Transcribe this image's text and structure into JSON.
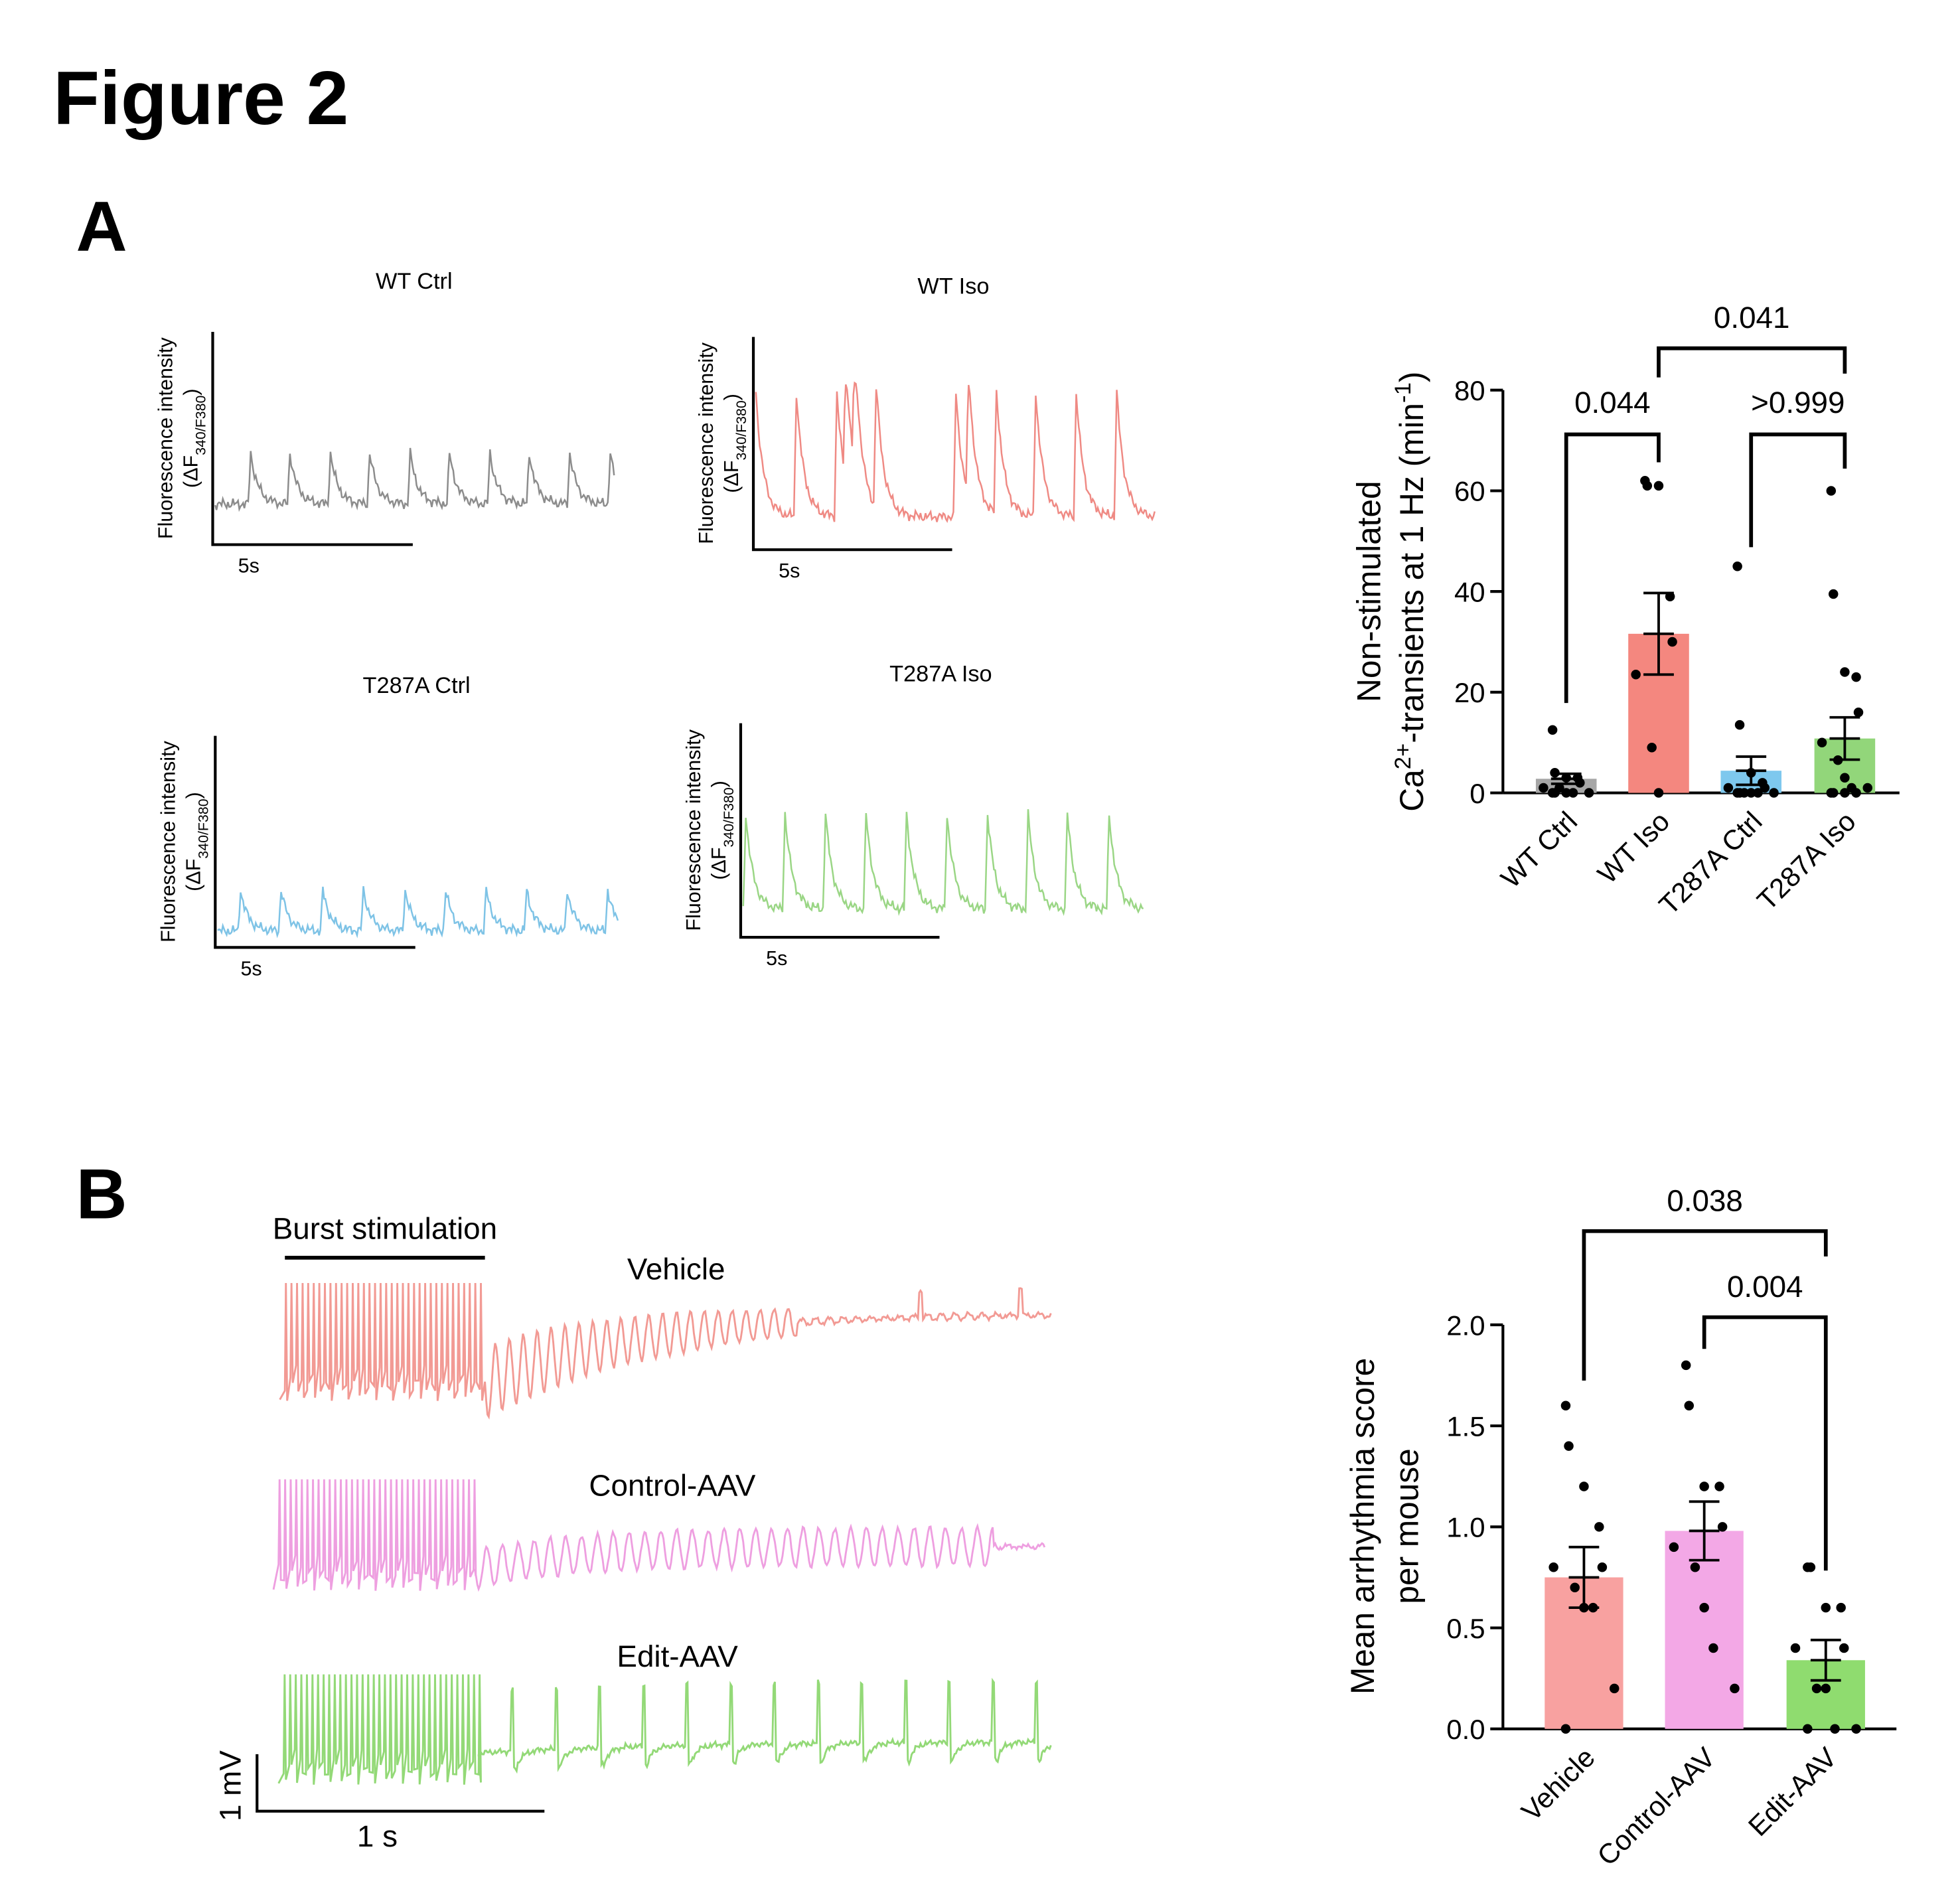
{
  "figure_title": "Figure 2",
  "panels": [
    {
      "label": "A",
      "traces": [
        {
          "title": "WT Ctrl",
          "color": "#8c8c8c",
          "ylabel": [
            "Fluorescence intensity",
            [
              "(ΔF",
              "340/F380",
              ")"
            ]
          ],
          "scale_label": "5s"
        },
        {
          "title": "WT Iso",
          "color": "#ef8a84",
          "ylabel": [
            "Fluorescence intensity",
            [
              "(ΔF",
              "340/F380",
              ")"
            ]
          ],
          "scale_label": "5s"
        },
        {
          "title": "T287A Ctrl",
          "color": "#7ec3e6",
          "ylabel": [
            "Fluorescence intensity",
            [
              "(ΔF",
              "340/F380",
              ")"
            ]
          ],
          "scale_label": "5s"
        },
        {
          "title": "T287A Iso",
          "color": "#9ad685",
          "ylabel": [
            "Fluorescence intensity",
            [
              "(ΔF",
              "340/F380",
              ")"
            ]
          ],
          "scale_label": "5s"
        }
      ]
    },
    {
      "label": "B",
      "annotation": "Burst stimulation",
      "traces": [
        {
          "title": "Vehicle",
          "color": "#f29a94"
        },
        {
          "title": "Control-AAV",
          "color": "#ee9fe0"
        },
        {
          "title": "Edit-AAV",
          "color": "#93d977"
        }
      ],
      "scale_y_label": "1 mV",
      "scale_x_label": "1 s"
    }
  ],
  "chart_data": [
    {
      "type": "bar",
      "ylabel": [
        "Non-stimulated",
        [
          "Ca",
          "2+",
          "-transients at 1 Hz (min",
          "-1",
          ")"
        ]
      ],
      "categories": [
        "WT Ctrl",
        "WT Iso",
        "T287A Ctrl",
        "T287A Iso"
      ],
      "colors": [
        "#a6a6a6",
        "#f4877f",
        "#7ec8ee",
        "#92d67a"
      ],
      "values": [
        2.8,
        31.6,
        4.4,
        10.8
      ],
      "errors": [
        1.0,
        8.1,
        2.8,
        4.2
      ],
      "points": [
        [
          12.5,
          4,
          3,
          3,
          2,
          1,
          1,
          0,
          0,
          0,
          0,
          0
        ],
        [
          62,
          61,
          61,
          39,
          30,
          23.5,
          9,
          0
        ],
        [
          45,
          13.5,
          4,
          2,
          1,
          1,
          0,
          0,
          0,
          0,
          0,
          0
        ],
        [
          60,
          39.5,
          24,
          23,
          16,
          10,
          6.5,
          3,
          1,
          1,
          0,
          0,
          0,
          0
        ]
      ],
      "ylim": [
        0,
        80
      ],
      "yticks": [
        0,
        20,
        40,
        60,
        80
      ],
      "comparisons": [
        {
          "between": [
            "WT Ctrl",
            "WT Iso"
          ],
          "label": "0.044"
        },
        {
          "between": [
            "T287A Ctrl",
            "T287A Iso"
          ],
          "label": ">0.999"
        },
        {
          "between": [
            "WT Iso",
            "T287A Iso"
          ],
          "label": "0.041"
        }
      ]
    },
    {
      "type": "bar",
      "ylabel": [
        "Mean arrhythmia score",
        "per mouse"
      ],
      "categories": [
        "Vehicle",
        "Control-AAV",
        "Edit-AAV"
      ],
      "colors": [
        "#f8a1a0",
        "#f3a8e6",
        "#8fdc6f"
      ],
      "values": [
        0.75,
        0.98,
        0.34
      ],
      "errors": [
        0.15,
        0.145,
        0.1
      ],
      "points": [
        [
          1.6,
          1.4,
          1.2,
          1.0,
          0.8,
          0.8,
          0.7,
          0.6,
          0.6,
          0.2,
          0
        ],
        [
          1.8,
          1.6,
          1.2,
          1.2,
          1.0,
          0.9,
          0.8,
          0.6,
          0.4,
          0.2
        ],
        [
          0.8,
          0.8,
          0.6,
          0.6,
          0.4,
          0.4,
          0.2,
          0.2,
          0,
          0,
          0
        ]
      ],
      "ylim": [
        0,
        2
      ],
      "yticks": [
        {
          "value": 0,
          "label": "0.0"
        },
        0.5,
        {
          "value": 1,
          "label": "1.0"
        },
        1.5,
        {
          "value": 2,
          "label": "2.0"
        }
      ],
      "comparisons": [
        {
          "between": [
            "Vehicle",
            "Edit-AAV"
          ],
          "label": "0.038"
        },
        {
          "between": [
            "Control-AAV",
            "Edit-AAV"
          ],
          "label": "0.004"
        }
      ]
    }
  ]
}
